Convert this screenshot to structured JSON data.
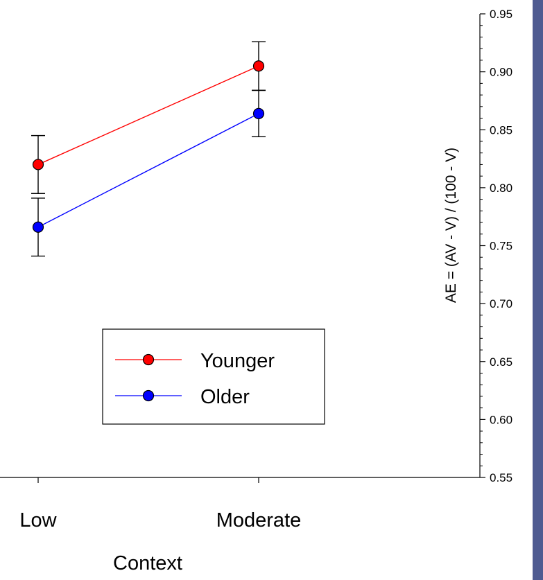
{
  "chart_data": {
    "type": "line",
    "categories": [
      "Low",
      "Moderate"
    ],
    "series": [
      {
        "name": "Younger",
        "values": [
          0.82,
          0.905
        ],
        "errors": [
          0.025,
          0.021
        ],
        "color": "#ff0000"
      },
      {
        "name": "Older",
        "values": [
          0.766,
          0.864
        ],
        "errors": [
          0.025,
          0.02
        ],
        "color": "#0000ff"
      }
    ],
    "xlabel": "Context",
    "ylabel": "AE = (AV - V) / (100 - V)",
    "ylim": [
      0.55,
      0.95
    ],
    "yticks": [
      "0.55",
      "0.60",
      "0.65",
      "0.70",
      "0.75",
      "0.80",
      "0.85",
      "0.90",
      "0.95"
    ],
    "yaxis_position": "right",
    "grid": false,
    "legend_position": "lower-center"
  },
  "colors": {
    "right_strip": "#4f5b91"
  }
}
